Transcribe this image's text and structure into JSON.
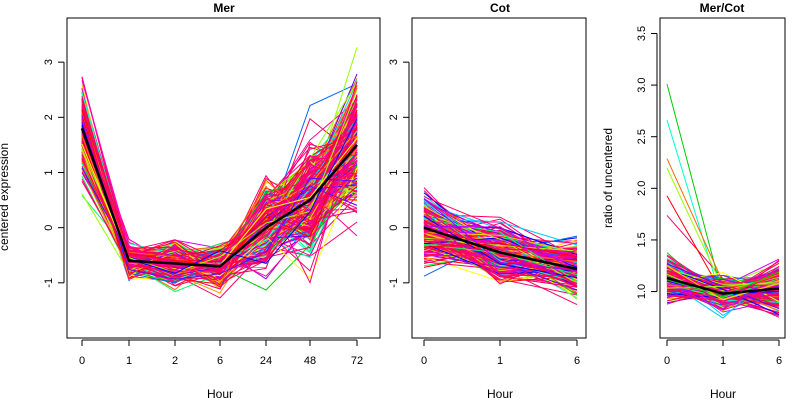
{
  "chart_data": [
    {
      "type": "line",
      "title": "Mer",
      "xlabel": "Hour",
      "ylabel": "centered expression",
      "categories": [
        "0",
        "1",
        "2",
        "6",
        "24",
        "48",
        "72"
      ],
      "ylim": [
        -2.0,
        3.8
      ],
      "yticks": [
        -1,
        0,
        1,
        2,
        3
      ],
      "mean_line": [
        1.8,
        -0.6,
        -0.65,
        -0.7,
        0.0,
        0.5,
        1.5
      ],
      "n_profiles": 300
    },
    {
      "type": "line",
      "title": "Cot",
      "xlabel": "Hour",
      "ylabel": "",
      "categories": [
        "0",
        "1",
        "6"
      ],
      "ylim": [
        -2.0,
        3.8
      ],
      "yticks": [
        -1,
        0,
        1,
        2,
        3
      ],
      "mean_line": [
        0.0,
        -0.45,
        -0.75
      ],
      "n_profiles": 300
    },
    {
      "type": "line",
      "title": "Mer/Cot",
      "xlabel": "Hour",
      "ylabel": "ratio of uncentered",
      "categories": [
        "0",
        "1",
        "6"
      ],
      "ylim": [
        0.55,
        3.65
      ],
      "yticks": [
        1.0,
        1.5,
        2.0,
        2.5,
        3.0,
        3.5
      ],
      "mean_line": [
        1.13,
        0.98,
        1.03
      ],
      "n_profiles": 300
    }
  ],
  "colors": {
    "palette": [
      "#ff0000",
      "#ff6600",
      "#ff9900",
      "#ffcc00",
      "#ffff00",
      "#99ff00",
      "#00cc00",
      "#00ff66",
      "#00ffcc",
      "#00ccff",
      "#0066ff",
      "#0000ff",
      "#6600ff",
      "#9900ff",
      "#cc00ff",
      "#ff00cc",
      "#ff0099",
      "#ff0066"
    ],
    "dominant": "#ff0066",
    "mean_line": "#000000"
  }
}
